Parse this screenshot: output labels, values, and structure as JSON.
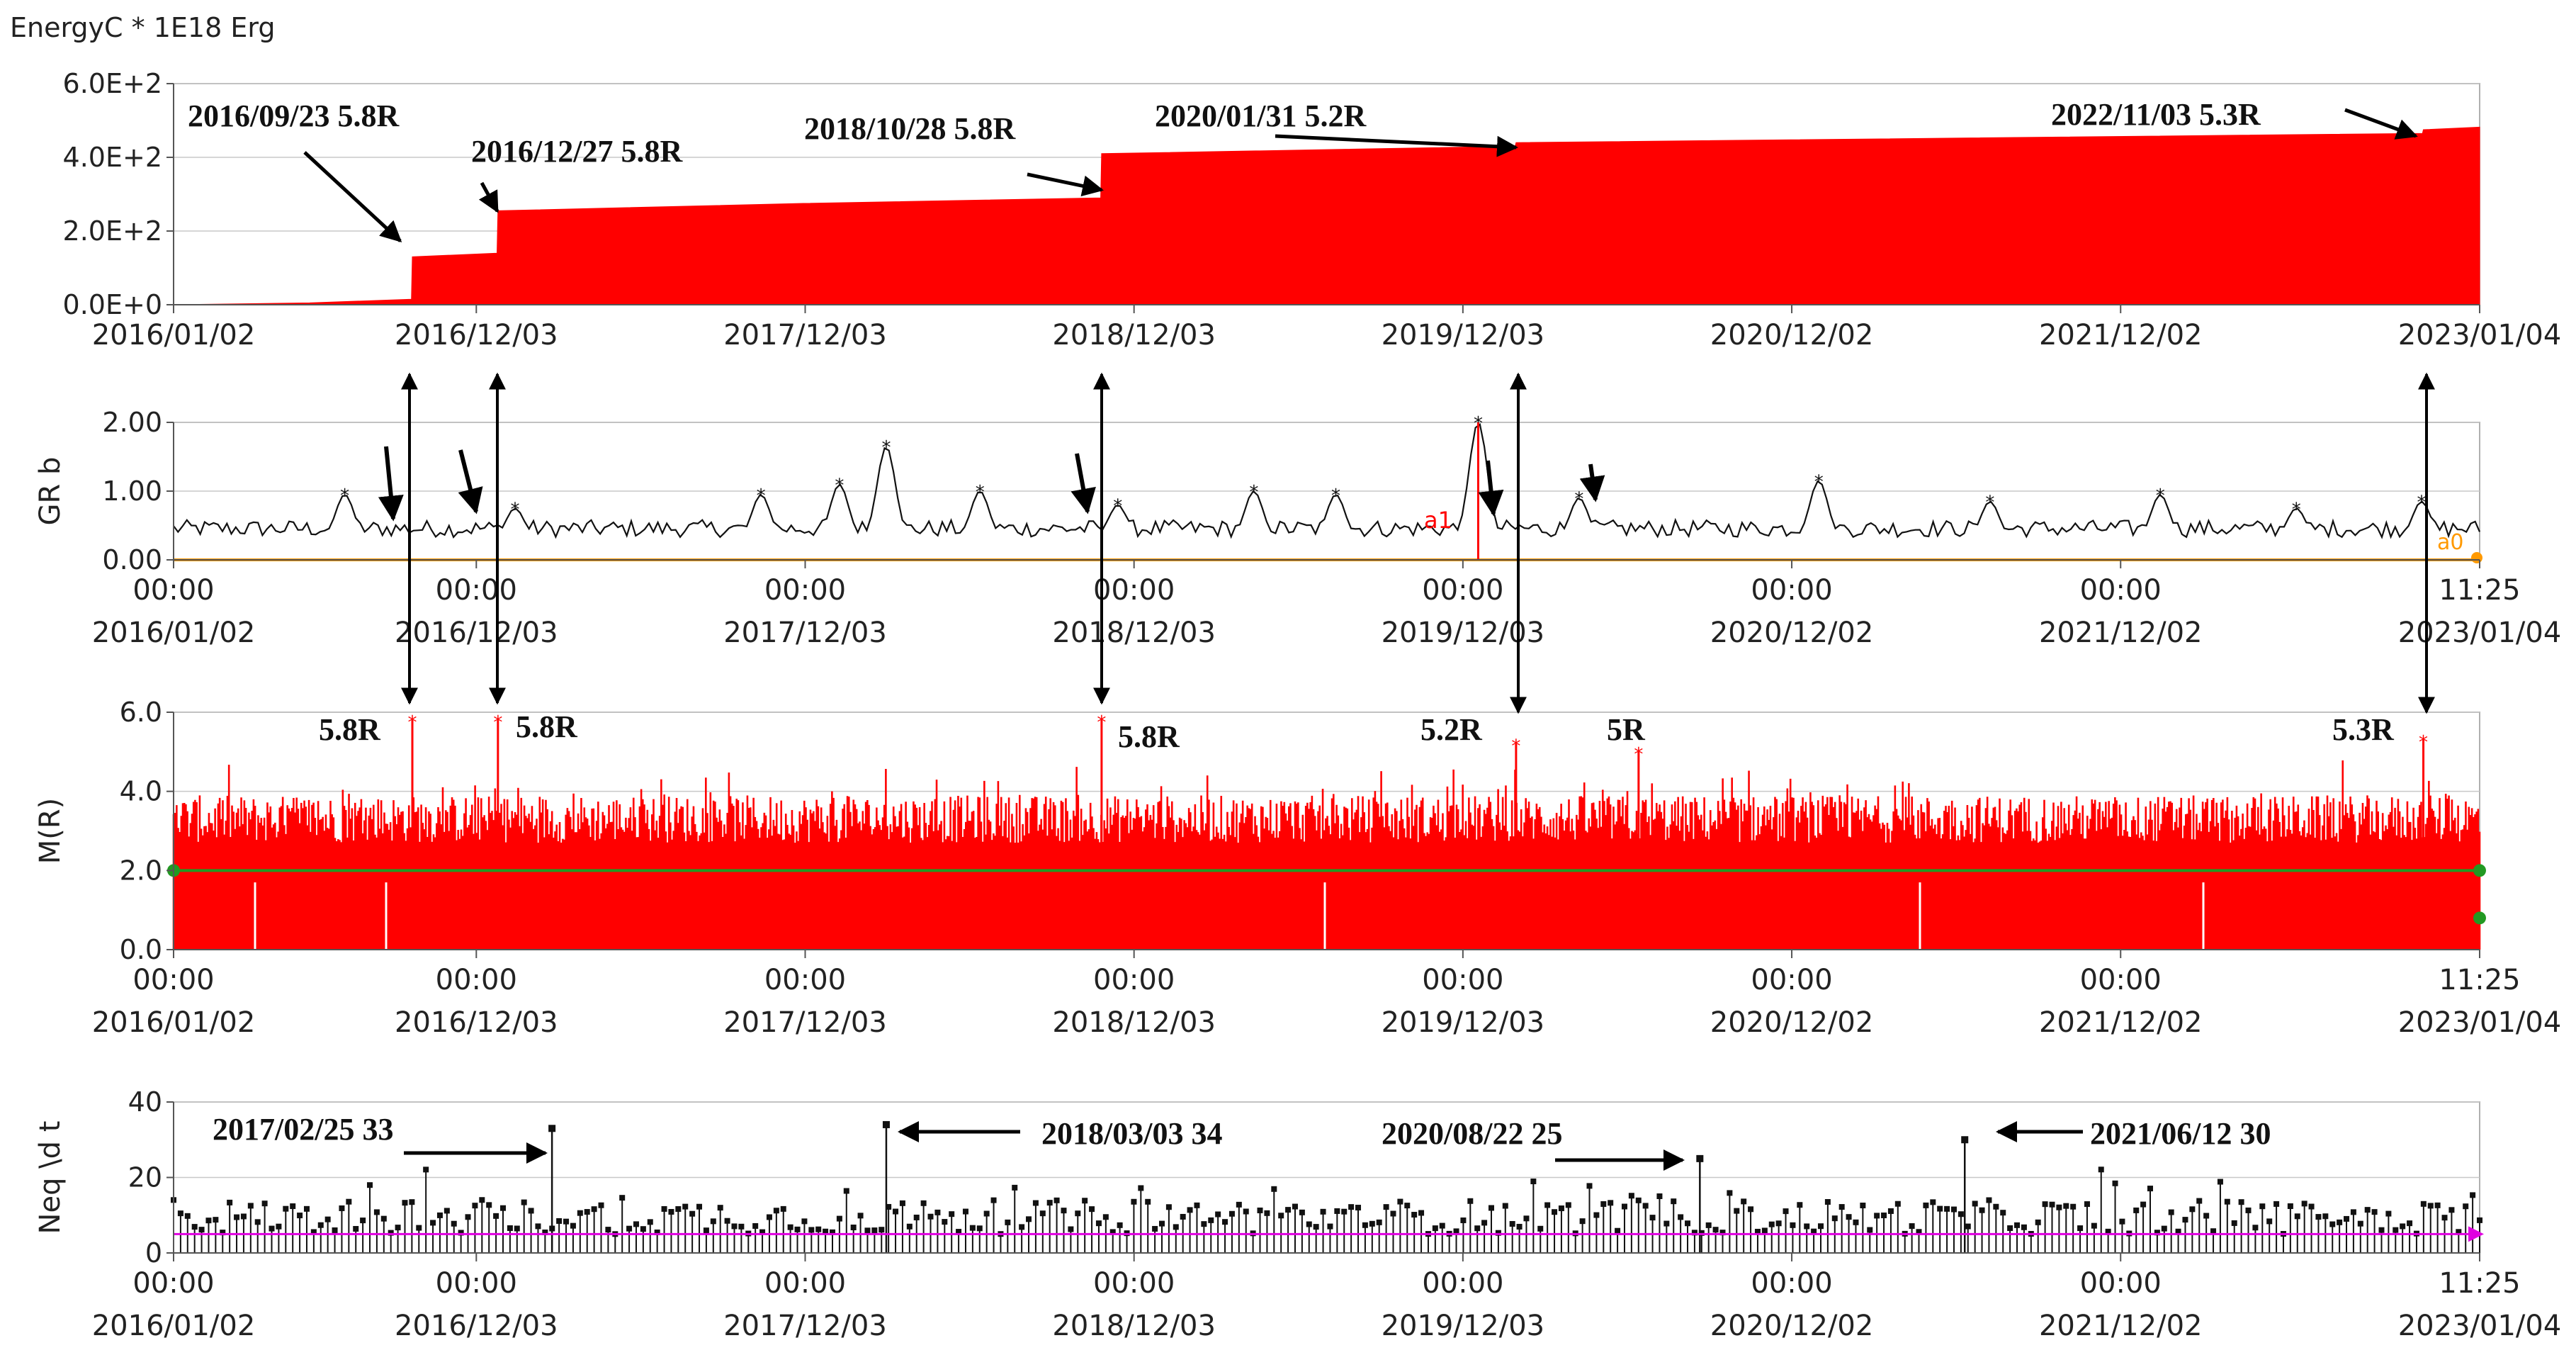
{
  "header": {
    "title": "EnergyC * 1E18 Erg"
  },
  "x_axis": {
    "dates": [
      "2016/01/02",
      "2016/12/03",
      "2017/12/03",
      "2018/12/03",
      "2019/12/03",
      "2020/12/02",
      "2021/12/02",
      "2023/01/04"
    ],
    "times": [
      "00:00",
      "00:00",
      "00:00",
      "00:00",
      "00:00",
      "00:00",
      "00:00",
      "11:25"
    ]
  },
  "colors": {
    "fill_red": "#ff0000",
    "orange": "#ff9900",
    "green": "#229922",
    "magenta": "#e000e0",
    "grid": "#c8c8c8"
  },
  "chart_data": [
    {
      "type": "area",
      "name": "energy",
      "ylabel": "EnergyC * 1E18 Erg",
      "ytick_labels": [
        "0.0E+0",
        "2.0E+2",
        "4.0E+2",
        "6.0E+2"
      ],
      "ylim": [
        0,
        600
      ],
      "xlim": [
        "2016/01/02",
        "2023/01/04"
      ],
      "points": [
        [
          "2016/01/02",
          0
        ],
        [
          "2016/06/01",
          5
        ],
        [
          "2016/09/22",
          15
        ],
        [
          "2016/09/23",
          130
        ],
        [
          "2016/12/26",
          140
        ],
        [
          "2016/12/27",
          255
        ],
        [
          "2017/12/01",
          275
        ],
        [
          "2018/10/27",
          290
        ],
        [
          "2018/10/28",
          410
        ],
        [
          "2020/01/30",
          430
        ],
        [
          "2020/01/31",
          440
        ],
        [
          "2022/11/02",
          465
        ],
        [
          "2022/11/03",
          475
        ],
        [
          "2023/01/04",
          482
        ]
      ],
      "annotations": [
        "2016/09/23 5.8R",
        "2016/12/27 5.8R",
        "2018/10/28 5.8R",
        "2020/01/31 5.2R",
        "2022/11/03 5.3R"
      ]
    },
    {
      "type": "line",
      "name": "gr_b",
      "ylabel": "GR b",
      "ytick_labels": [
        "0.00",
        "1.00",
        "2.00"
      ],
      "ylim": [
        0,
        2
      ],
      "baseline": 0.0,
      "markers": [
        "a1",
        "a0"
      ],
      "peaks": [
        [
          "2016/07/10",
          0.95
        ],
        [
          "2017/01/15",
          0.75
        ],
        [
          "2017/10/15",
          0.95
        ],
        [
          "2018/01/10",
          1.1
        ],
        [
          "2018/03/03",
          1.65
        ],
        [
          "2018/06/15",
          1.0
        ],
        [
          "2018/11/15",
          0.8
        ],
        [
          "2019/04/15",
          1.0
        ],
        [
          "2019/07/15",
          0.95
        ],
        [
          "2019/12/20",
          2.0
        ],
        [
          "2020/04/10",
          0.9
        ],
        [
          "2021/01/01",
          1.15
        ],
        [
          "2021/07/10",
          0.85
        ],
        [
          "2022/01/15",
          0.95
        ],
        [
          "2022/06/15",
          0.75
        ],
        [
          "2022/11/01",
          0.85
        ]
      ]
    },
    {
      "type": "bar",
      "name": "magnitude",
      "ylabel": "M(R)",
      "ytick_labels": [
        "0.0",
        "2.0",
        "4.0",
        "6.0"
      ],
      "ylim": [
        0,
        6
      ],
      "reference_line": 2.0,
      "major_events": [
        [
          "2016/09/23",
          5.8
        ],
        [
          "2016/12/27",
          5.8
        ],
        [
          "2018/10/28",
          5.8
        ],
        [
          "2020/01/31",
          5.2
        ],
        [
          "2020/06/15",
          5.0
        ],
        [
          "2022/11/03",
          5.3
        ]
      ],
      "labels": [
        "5.8R",
        "5.8R",
        "5.8R",
        "5.2R",
        "5R",
        "5.3R"
      ]
    },
    {
      "type": "bar",
      "name": "neq_rate",
      "ylabel": "Neq \\d t",
      "ytick_labels": [
        "0",
        "20",
        "40"
      ],
      "ylim": [
        0,
        40
      ],
      "baseline": 5,
      "peaks": [
        [
          "2017/02/25",
          33
        ],
        [
          "2018/03/03",
          34
        ],
        [
          "2020/08/22",
          25
        ],
        [
          "2021/06/12",
          30
        ]
      ],
      "annotations": [
        "2017/02/25 33",
        "2018/03/03 34",
        "2020/08/22 25",
        "2021/06/12 30"
      ]
    }
  ]
}
